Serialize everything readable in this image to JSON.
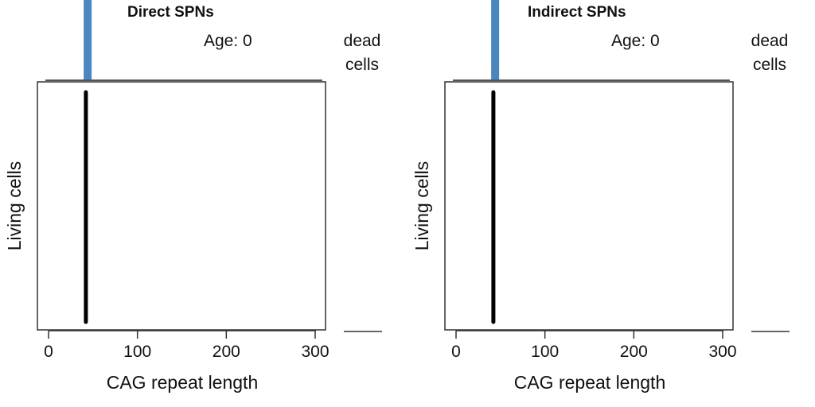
{
  "chart_data": [
    {
      "type": "line",
      "title": "Direct SPNs",
      "age_label": "Age: 0",
      "dead_label_line1": "dead",
      "dead_label_line2": "cells",
      "xlabel": "CAG repeat length",
      "ylabel": "Living cells",
      "xlim": [
        0,
        310
      ],
      "xticks": [
        0,
        100,
        200,
        300
      ],
      "xtick_labels": [
        "0",
        "100",
        "200",
        "300"
      ],
      "living_cells_cag_repeat": 42,
      "dead_cells_cag_repeat": 44,
      "colors": {
        "living": "#000000",
        "dead": "#4a86c0"
      },
      "grid": false
    },
    {
      "type": "line",
      "title": "Indirect SPNs",
      "age_label": "Age: 0",
      "dead_label_line1": "dead",
      "dead_label_line2": "cells",
      "xlabel": "CAG repeat length",
      "ylabel": "Living cells",
      "xlim": [
        0,
        310
      ],
      "xticks": [
        0,
        100,
        200,
        300
      ],
      "xtick_labels": [
        "0",
        "100",
        "200",
        "300"
      ],
      "living_cells_cag_repeat": 42,
      "dead_cells_cag_repeat": 44,
      "colors": {
        "living": "#000000",
        "dead": "#4a86c0"
      },
      "grid": false
    }
  ]
}
